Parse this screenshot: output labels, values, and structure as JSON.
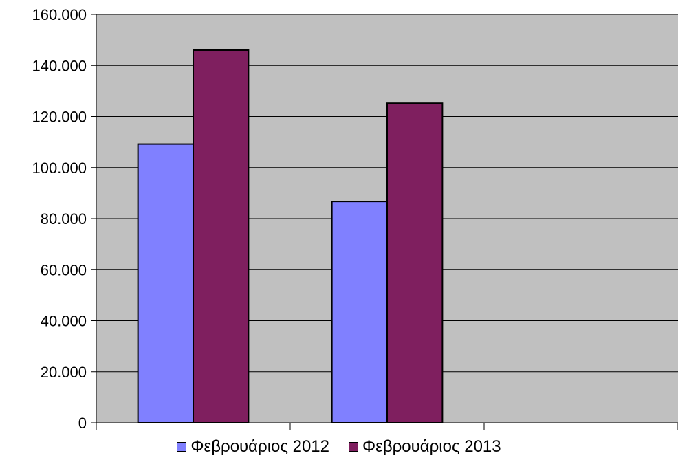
{
  "chart_data": {
    "type": "bar",
    "title": "",
    "xlabel": "",
    "ylabel": "",
    "categories": [
      "",
      "",
      ""
    ],
    "series": [
      {
        "name": "Φεβρουάριος 2012",
        "values": [
          109200,
          86700,
          null
        ],
        "color": "#8080ff"
      },
      {
        "name": "Φεβρουάριος 2013",
        "values": [
          146000,
          125200,
          null
        ],
        "color": "#7f1f5f"
      }
    ],
    "ylim": [
      0,
      160000
    ],
    "yticks": [
      0,
      20000,
      40000,
      60000,
      80000,
      100000,
      120000,
      140000,
      160000
    ],
    "ytick_labels": [
      "0",
      "20.000",
      "40.000",
      "60.000",
      "80.000",
      "100.000",
      "120.000",
      "140.000",
      "160.000"
    ],
    "grid": true,
    "legend_position": "bottom",
    "plot_background": "#c0c0c0"
  }
}
